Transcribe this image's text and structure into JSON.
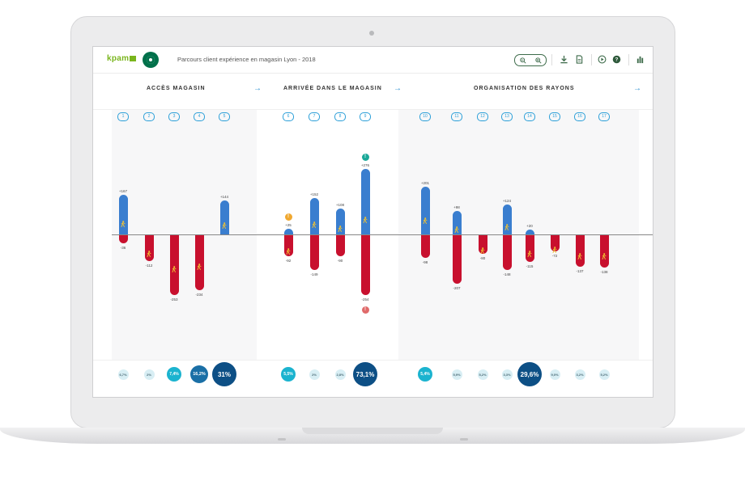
{
  "app": {
    "brand": "kpam",
    "doc_title": "Parcours client expérience en magasin Lyon - 2018"
  },
  "toolbar": {
    "icons": [
      "zoom-out-icon",
      "zoom-in-icon",
      "download-icon",
      "document-icon",
      "play-icon",
      "help-icon",
      "bar-chart-icon"
    ]
  },
  "sections": [
    {
      "title": "ACCÈS MAGASIN",
      "arrow": "→"
    },
    {
      "title": "ARRIVÉE DANS LE MAGASIN",
      "arrow": "→"
    },
    {
      "title": "ORGANISATION DES RAYONS",
      "arrow": "→"
    }
  ],
  "colors": {
    "positive": "#3a7ecf",
    "negative": "#c8102e",
    "walker": "#f1c232",
    "alert_green": "#1aa898",
    "alert_orange": "#f0a830",
    "alert_red": "#e06a6a"
  },
  "chart_data": {
    "type": "bar",
    "categories": [
      "1",
      "2",
      "3",
      "4",
      "5",
      "6",
      "7",
      "8",
      "9",
      "10",
      "11",
      "12",
      "13",
      "14",
      "15",
      "16",
      "17"
    ],
    "series": [
      {
        "values": [
          167,
          0,
          0,
          0,
          144,
          25,
          152,
          108,
          276,
          201,
          98,
          0,
          124,
          20,
          0,
          0,
          0
        ]
      },
      {
        "values": [
          -36,
          -112,
          -253,
          -234,
          0,
          -92,
          -149,
          -90,
          -254,
          -98,
          -207,
          -80,
          -148,
          -115,
          -72,
          -137,
          -138
        ]
      }
    ],
    "positive_labels": [
      "+167",
      "",
      "",
      "",
      "+144",
      "+25",
      "+152",
      "+108",
      "+276",
      "+201",
      "+98",
      "",
      "+124",
      "+20",
      "",
      "",
      ""
    ],
    "negative_labels": [
      "-36",
      "-112",
      "-253",
      "-234",
      "",
      "-92",
      "-149",
      "-90",
      "-254",
      "-98",
      "-207",
      "-80",
      "-148",
      "-115",
      "-72",
      "-137",
      "-138"
    ],
    "percent_labels": [
      "6,7%",
      "2%",
      "7,4%",
      "16,2%",
      "31%",
      "5,5%",
      "2%",
      "2,8%",
      "73,1%",
      "5,4%",
      "5,9%",
      "5,2%",
      "3,3%",
      "29,6%",
      "9,0%",
      "3,2%",
      "5,2%"
    ],
    "percent_values": [
      6.7,
      2,
      7.4,
      16.2,
      31,
      5.5,
      2,
      2.8,
      73.1,
      5.4,
      5.9,
      5.2,
      3.3,
      29.6,
      9.0,
      3.2,
      5.2
    ],
    "alerts": [
      {
        "category": "6",
        "kind": "orange",
        "glyph": "!"
      },
      {
        "category": "9",
        "kind": "green",
        "glyph": "!"
      },
      {
        "category": "9",
        "kind": "red",
        "glyph": "!"
      }
    ]
  }
}
